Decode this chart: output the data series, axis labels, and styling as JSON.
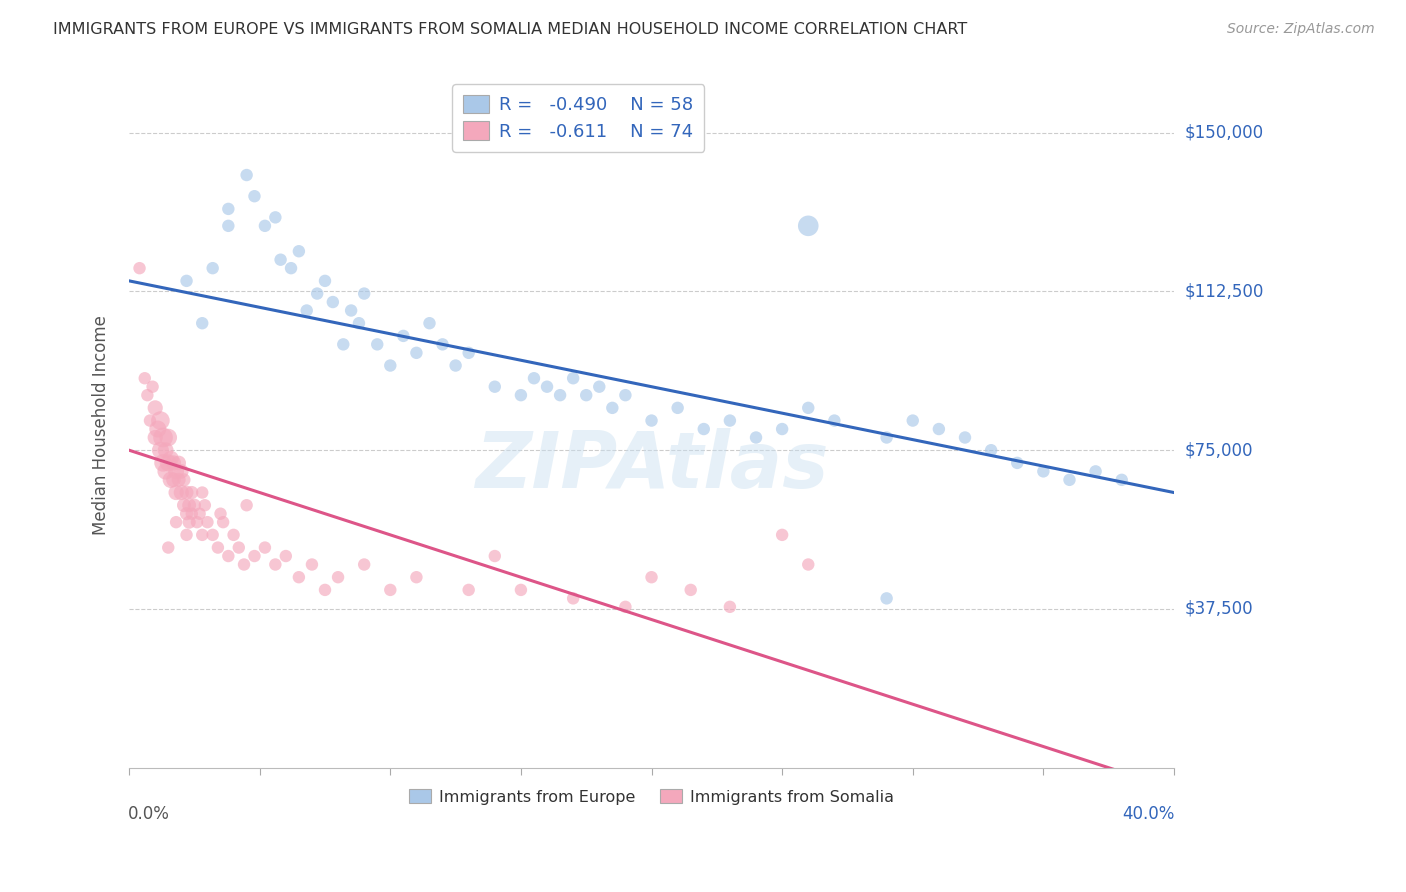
{
  "title": "IMMIGRANTS FROM EUROPE VS IMMIGRANTS FROM SOMALIA MEDIAN HOUSEHOLD INCOME CORRELATION CHART",
  "source": "Source: ZipAtlas.com",
  "ylabel": "Median Household Income",
  "ytick_values": [
    37500,
    75000,
    112500,
    150000
  ],
  "ytick_labels": [
    "$37,500",
    "$75,000",
    "$112,500",
    "$150,000"
  ],
  "ymin": 0,
  "ymax": 162000,
  "xmin": 0.0,
  "xmax": 0.4,
  "legend_europe_R": "-0.490",
  "legend_europe_N": "58",
  "legend_somalia_R": "-0.611",
  "legend_somalia_N": "74",
  "europe_color": "#aac8e8",
  "somalia_color": "#f4a8bc",
  "europe_line_color": "#3366bb",
  "somalia_line_color": "#dd5588",
  "background_color": "#ffffff",
  "grid_color": "#cccccc",
  "watermark": "ZIPAtlas",
  "europe_scatter_x": [
    0.022,
    0.028,
    0.032,
    0.038,
    0.038,
    0.045,
    0.048,
    0.052,
    0.056,
    0.058,
    0.062,
    0.065,
    0.068,
    0.072,
    0.075,
    0.078,
    0.082,
    0.085,
    0.088,
    0.09,
    0.095,
    0.1,
    0.105,
    0.11,
    0.115,
    0.12,
    0.125,
    0.13,
    0.14,
    0.15,
    0.155,
    0.16,
    0.165,
    0.17,
    0.175,
    0.18,
    0.185,
    0.19,
    0.2,
    0.21,
    0.22,
    0.23,
    0.24,
    0.25,
    0.26,
    0.27,
    0.29,
    0.3,
    0.31,
    0.32,
    0.33,
    0.34,
    0.35,
    0.36,
    0.37,
    0.38,
    0.26,
    0.29
  ],
  "europe_scatter_y": [
    115000,
    105000,
    118000,
    128000,
    132000,
    140000,
    135000,
    128000,
    130000,
    120000,
    118000,
    122000,
    108000,
    112000,
    115000,
    110000,
    100000,
    108000,
    105000,
    112000,
    100000,
    95000,
    102000,
    98000,
    105000,
    100000,
    95000,
    98000,
    90000,
    88000,
    92000,
    90000,
    88000,
    92000,
    88000,
    90000,
    85000,
    88000,
    82000,
    85000,
    80000,
    82000,
    78000,
    80000,
    85000,
    82000,
    78000,
    82000,
    80000,
    78000,
    75000,
    72000,
    70000,
    68000,
    70000,
    68000,
    128000,
    40000
  ],
  "europe_scatter_size": [
    80,
    80,
    80,
    80,
    80,
    80,
    80,
    80,
    80,
    80,
    80,
    80,
    80,
    80,
    80,
    80,
    80,
    80,
    80,
    80,
    80,
    80,
    80,
    80,
    80,
    80,
    80,
    80,
    80,
    80,
    80,
    80,
    80,
    80,
    80,
    80,
    80,
    80,
    80,
    80,
    80,
    80,
    80,
    80,
    80,
    80,
    80,
    80,
    80,
    80,
    80,
    80,
    80,
    80,
    80,
    80,
    220,
    80
  ],
  "somalia_scatter_x": [
    0.004,
    0.006,
    0.007,
    0.008,
    0.009,
    0.01,
    0.01,
    0.011,
    0.012,
    0.012,
    0.013,
    0.013,
    0.014,
    0.014,
    0.015,
    0.015,
    0.016,
    0.016,
    0.017,
    0.017,
    0.018,
    0.018,
    0.019,
    0.019,
    0.02,
    0.02,
    0.021,
    0.021,
    0.022,
    0.022,
    0.023,
    0.023,
    0.024,
    0.024,
    0.025,
    0.026,
    0.027,
    0.028,
    0.029,
    0.03,
    0.032,
    0.034,
    0.036,
    0.038,
    0.04,
    0.042,
    0.044,
    0.048,
    0.052,
    0.056,
    0.06,
    0.065,
    0.07,
    0.075,
    0.08,
    0.09,
    0.1,
    0.11,
    0.13,
    0.15,
    0.17,
    0.19,
    0.2,
    0.215,
    0.23,
    0.14,
    0.25,
    0.26,
    0.045,
    0.035,
    0.028,
    0.022,
    0.018,
    0.015
  ],
  "somalia_scatter_y": [
    118000,
    92000,
    88000,
    82000,
    90000,
    85000,
    78000,
    80000,
    82000,
    75000,
    78000,
    72000,
    75000,
    70000,
    78000,
    72000,
    68000,
    73000,
    72000,
    68000,
    70000,
    65000,
    72000,
    68000,
    65000,
    70000,
    62000,
    68000,
    65000,
    60000,
    62000,
    58000,
    65000,
    60000,
    62000,
    58000,
    60000,
    55000,
    62000,
    58000,
    55000,
    52000,
    58000,
    50000,
    55000,
    52000,
    48000,
    50000,
    52000,
    48000,
    50000,
    45000,
    48000,
    42000,
    45000,
    48000,
    42000,
    45000,
    42000,
    42000,
    40000,
    38000,
    45000,
    42000,
    38000,
    50000,
    55000,
    48000,
    62000,
    60000,
    65000,
    55000,
    58000,
    52000
  ],
  "somalia_scatter_size": [
    80,
    80,
    80,
    80,
    80,
    120,
    120,
    150,
    180,
    150,
    200,
    160,
    130,
    140,
    160,
    150,
    140,
    130,
    120,
    110,
    130,
    120,
    110,
    100,
    120,
    110,
    100,
    90,
    100,
    90,
    100,
    90,
    90,
    80,
    90,
    80,
    80,
    80,
    80,
    80,
    80,
    80,
    80,
    80,
    80,
    80,
    80,
    80,
    80,
    80,
    80,
    80,
    80,
    80,
    80,
    80,
    80,
    80,
    80,
    80,
    80,
    80,
    80,
    80,
    80,
    80,
    80,
    80,
    80,
    80,
    80,
    80,
    80,
    80
  ]
}
